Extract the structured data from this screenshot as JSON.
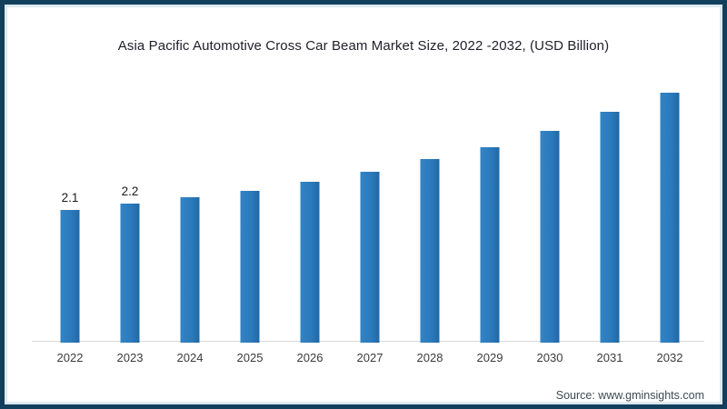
{
  "page": {
    "title": "Asia Pacific Automotive Cross Car Beam Market Size, 2022 -2032, (USD Billion)",
    "source": "Source: www.gminsights.com"
  },
  "colors": {
    "bar_main": "#2b79ba",
    "bar_light": "#3384c6",
    "bar_dark": "#1f68a6",
    "frame_border": "#123f5b",
    "axis_line": "#d8d8d8",
    "title_text": "#21212b",
    "tick_text": "#3b3b3b",
    "value_text": "#1c1c1c",
    "source_text": "#3e4a53"
  },
  "chart_data": {
    "type": "bar",
    "title": "Asia Pacific Automotive Cross Car Beam Market Size, 2022 -2032, (USD Billion)",
    "categories": [
      "2022",
      "2023",
      "2024",
      "2025",
      "2026",
      "2027",
      "2028",
      "2029",
      "2030",
      "2031",
      "2032"
    ],
    "values": [
      2.1,
      2.2,
      2.3,
      2.4,
      2.55,
      2.7,
      2.9,
      3.1,
      3.35,
      3.65,
      3.95
    ],
    "data_labels": [
      "2.1",
      "2.2",
      "",
      "",
      "",
      "",
      "",
      "",
      "",
      "",
      ""
    ],
    "xlabel": "",
    "ylabel": "",
    "ylim": [
      0,
      4.5
    ],
    "grid": false,
    "legend": false,
    "yaxis_visible": false,
    "source": "Source: www.gminsights.com"
  }
}
